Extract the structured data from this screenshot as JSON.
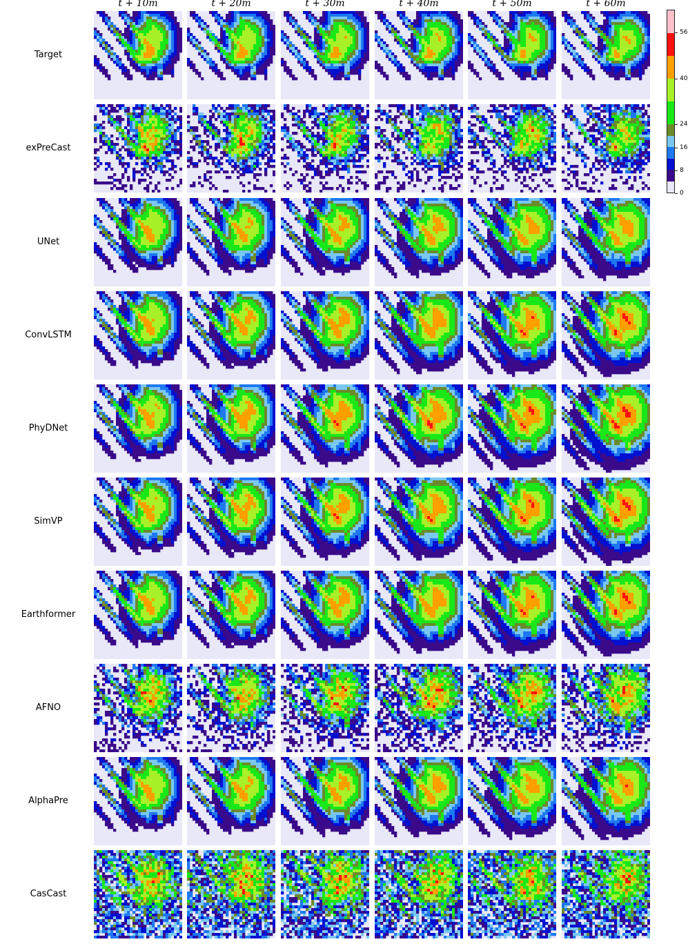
{
  "columns": [
    "t + 10m",
    "t + 20m",
    "t + 30m",
    "t + 40m",
    "t + 50m",
    "t + 60m"
  ],
  "rows": [
    "Target",
    "exPreCast",
    "UNet",
    "ConvLSTM",
    "PhyDNet",
    "SimVP",
    "Earthformer",
    "AFNO",
    "AlphaPre",
    "CasCast"
  ],
  "colorbar": {
    "tick_labels": [
      "56",
      "40",
      "24",
      "16",
      "8",
      "0"
    ],
    "tick_values": [
      56,
      40,
      24,
      16,
      8,
      0
    ],
    "levels": [
      {
        "from": 0,
        "to": 4,
        "color": "#e8e8f8"
      },
      {
        "from": 4,
        "to": 8,
        "color": "#3a0a8a"
      },
      {
        "from": 8,
        "to": 12,
        "color": "#0010d0"
      },
      {
        "from": 12,
        "to": 16,
        "color": "#1e78f0"
      },
      {
        "from": 16,
        "to": 20,
        "color": "#7ac8f0"
      },
      {
        "from": 20,
        "to": 24,
        "color": "#6b8a2a"
      },
      {
        "from": 24,
        "to": 32,
        "color": "#18e818"
      },
      {
        "from": 32,
        "to": 40,
        "color": "#a8f028"
      },
      {
        "from": 40,
        "to": 48,
        "color": "#ffa000"
      },
      {
        "from": 48,
        "to": 56,
        "color": "#ff1010"
      },
      {
        "from": 56,
        "to": 64,
        "color": "#ffc0cc"
      }
    ]
  }
}
